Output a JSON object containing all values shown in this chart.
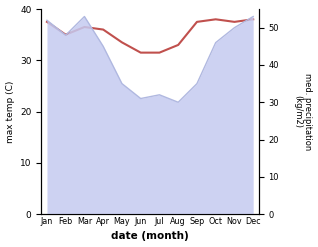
{
  "months": [
    "Jan",
    "Feb",
    "Mar",
    "Apr",
    "May",
    "Jun",
    "Jul",
    "Aug",
    "Sep",
    "Oct",
    "Nov",
    "Dec"
  ],
  "temperature": [
    37.5,
    35.0,
    36.5,
    36.0,
    33.5,
    31.5,
    31.5,
    33.0,
    37.5,
    38.0,
    37.5,
    38.0
  ],
  "precipitation": [
    52.0,
    48.0,
    53.0,
    45.0,
    35.0,
    31.0,
    32.0,
    30.0,
    35.0,
    46.0,
    50.0,
    53.0
  ],
  "temp_color": "#c0504d",
  "precip_line_color": "#b0b8e0",
  "precip_fill_color": "#c5caf0",
  "ylabel_left": "max temp (C)",
  "ylabel_right": "med. precipitation\n(kg/m2)",
  "xlabel": "date (month)",
  "ylim_left": [
    0,
    40
  ],
  "ylim_right": [
    0,
    55
  ],
  "yticks_left": [
    0,
    10,
    20,
    30,
    40
  ],
  "yticks_right": [
    0,
    10,
    20,
    30,
    40,
    50
  ],
  "background_color": "#ffffff"
}
